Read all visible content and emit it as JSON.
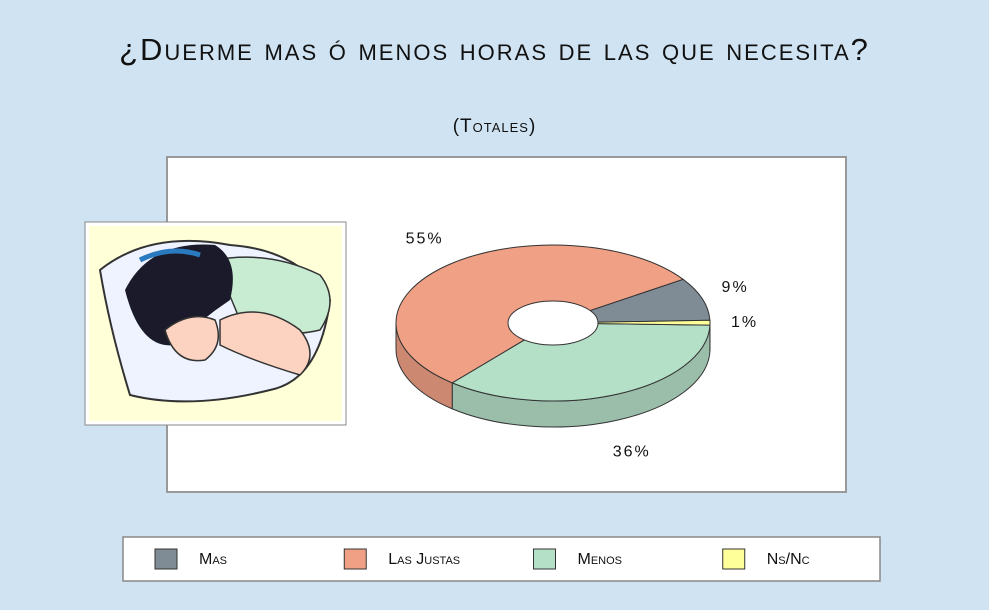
{
  "chart_data": {
    "type": "doughnut3d",
    "title": "¿Duerme mas ó menos horas de las que necesita?",
    "subtitle": "(Totales)",
    "categories": [
      "Mas",
      "Las Justas",
      "Menos",
      "Ns/Nc"
    ],
    "values": [
      9,
      55,
      36,
      1
    ],
    "value_labels": [
      "9%",
      "55%",
      "36%",
      "1%"
    ],
    "colors": [
      "#7f8c96",
      "#f0a085",
      "#b5e0c8",
      "#ffff99"
    ],
    "legend": "bottom"
  }
}
